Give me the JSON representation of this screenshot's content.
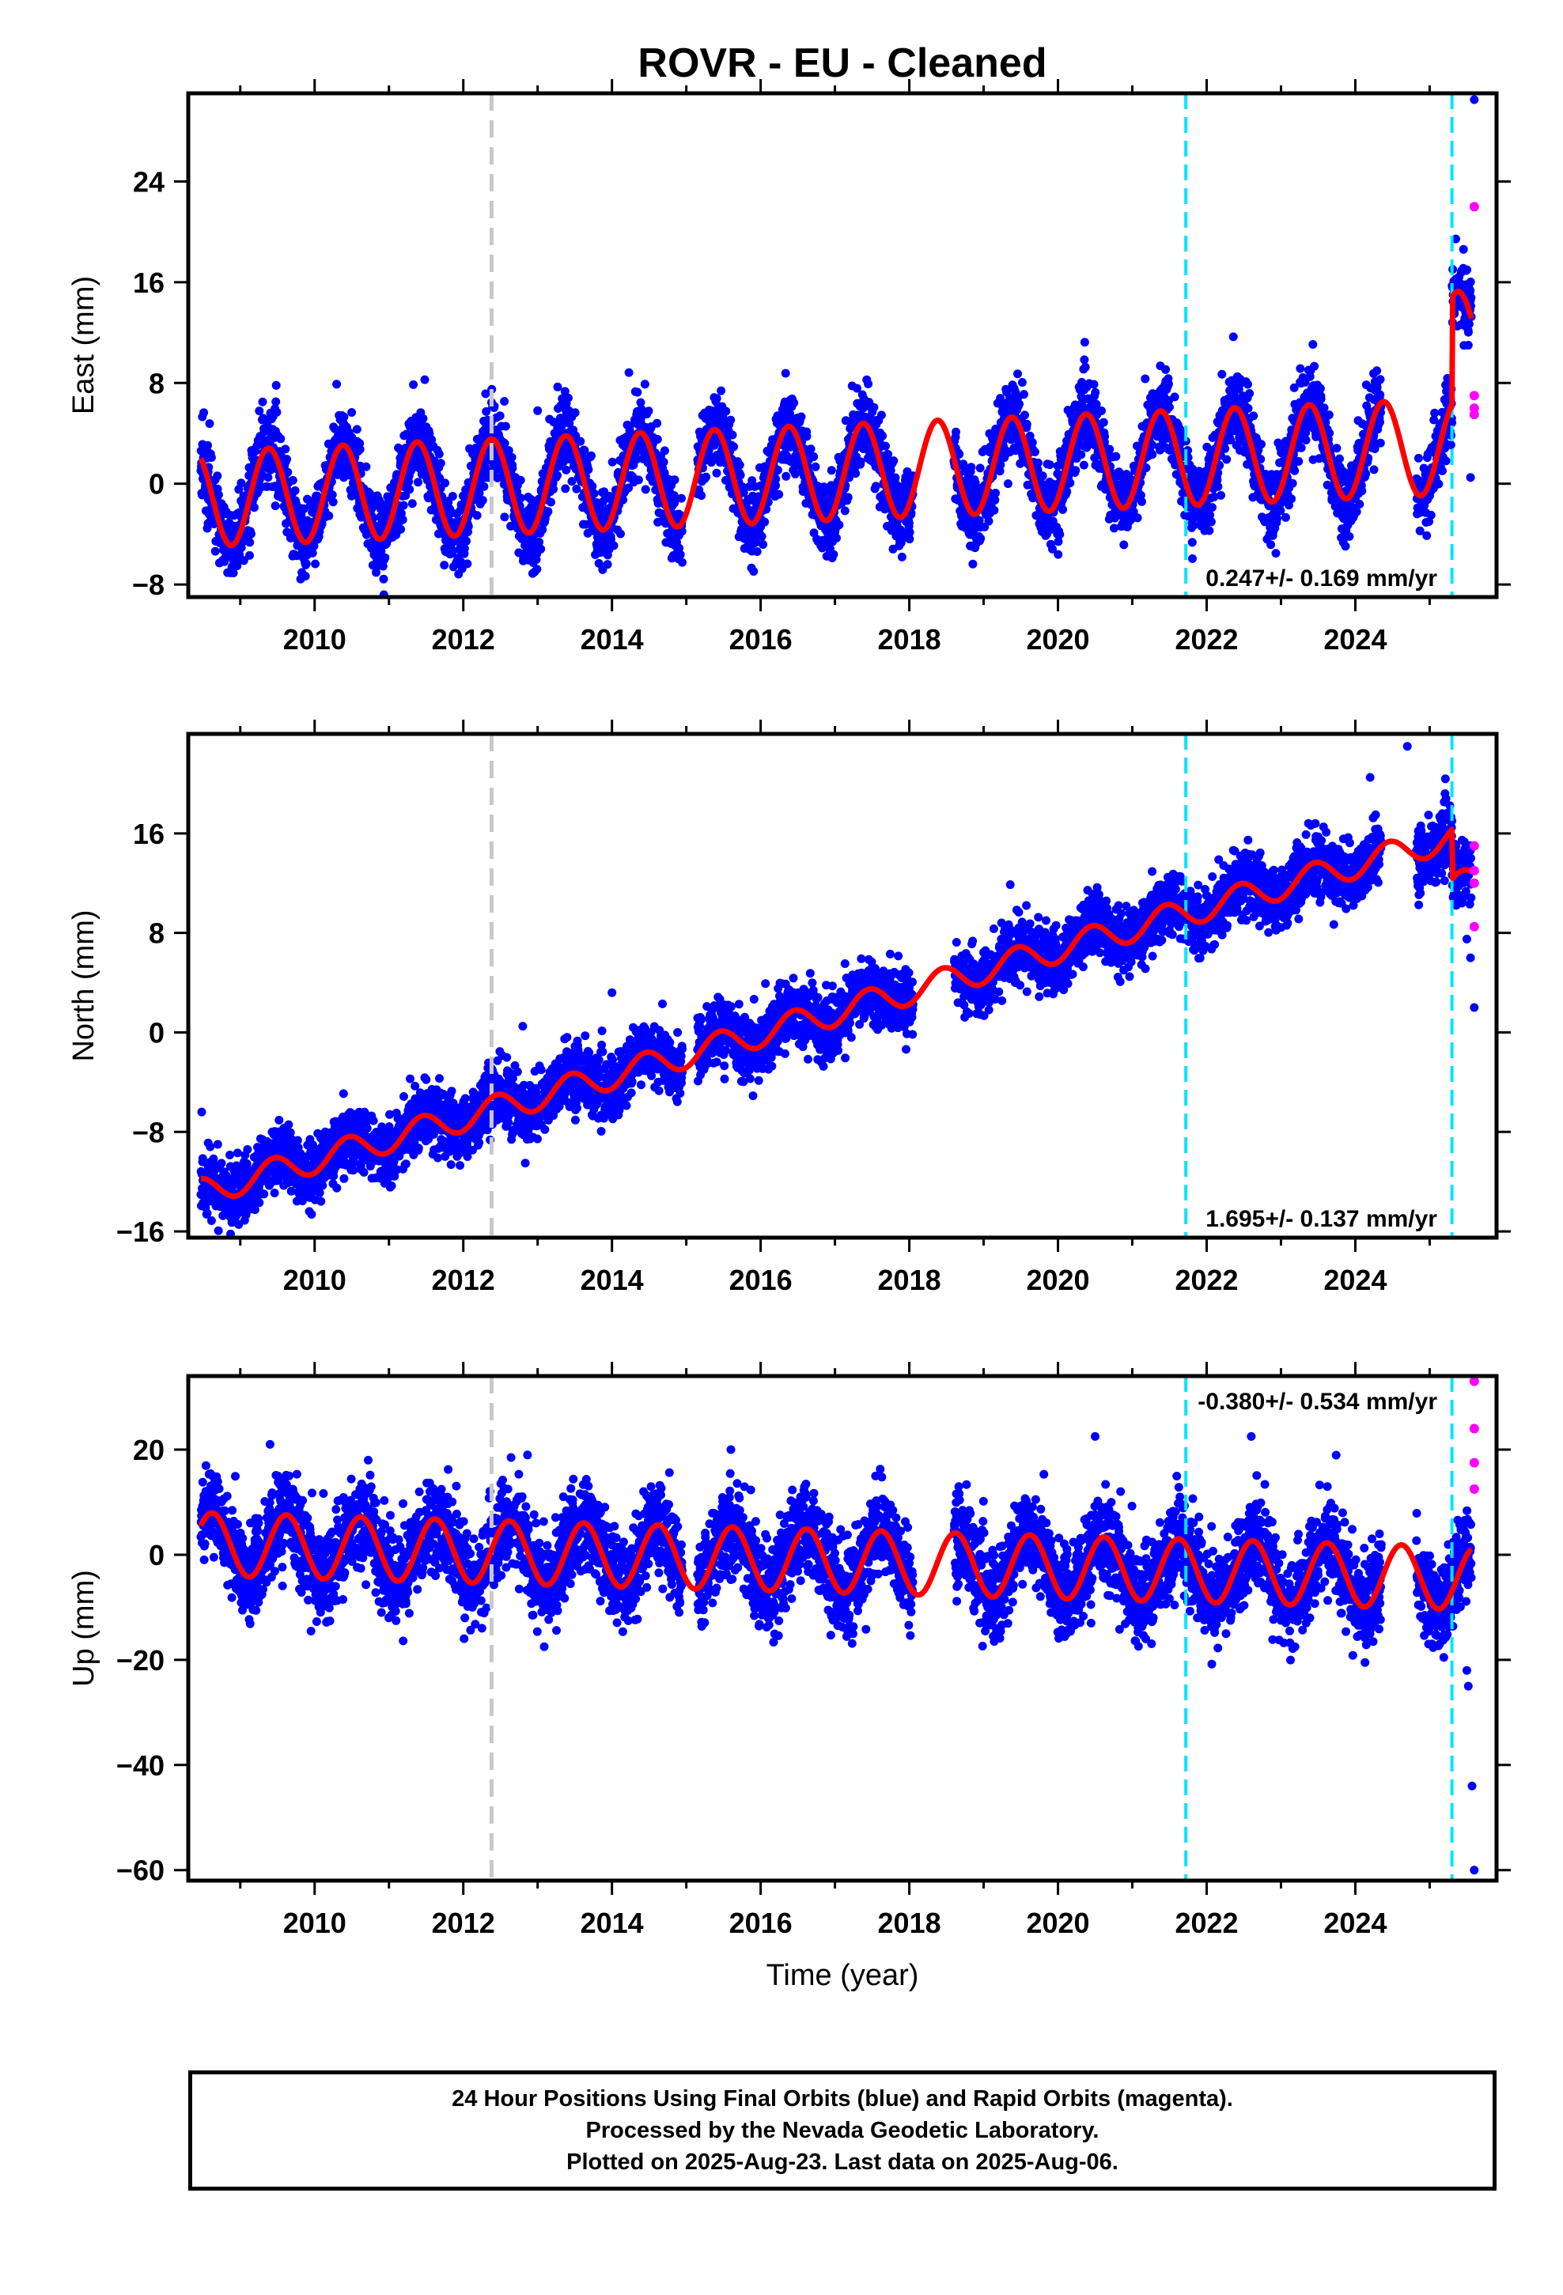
{
  "chart_data": {
    "type": "scatter",
    "title": "ROVR  - EU - Cleaned",
    "xlabel": "Time (year)",
    "xlim": [
      2008.3,
      2025.9
    ],
    "xticks": [
      2010,
      2012,
      2014,
      2016,
      2018,
      2020,
      2022,
      2024
    ],
    "colors": {
      "final": "#0000ff",
      "rapid": "#ff00ff",
      "model": "#ff0000",
      "equipment_change": "#c8c8c8",
      "earthquake": "#00e5ff"
    },
    "vertical_lines": [
      {
        "x": 2012.38,
        "kind": "equipment_change"
      },
      {
        "x": 2021.72,
        "kind": "earthquake"
      },
      {
        "x": 2025.3,
        "kind": "earthquake"
      }
    ],
    "gaps": [
      [
        2014.95,
        2015.15
      ],
      [
        2018.05,
        2018.6
      ],
      [
        2024.35,
        2024.82
      ]
    ],
    "panels": [
      {
        "id": "east",
        "ylabel": "East (mm)",
        "ylim": [
          -9,
          31
        ],
        "yticks": [
          -8,
          0,
          8,
          16,
          24
        ],
        "rate": "0.247+/- 0.169 mm/yr",
        "rate_position": "bottom-right",
        "slope": 0.247,
        "intercept": -1.2,
        "annual_amplitude": 3.8,
        "annual_phase_peak": 0.38,
        "noise_sd": 1.5,
        "offsets": [
          {
            "x": 2025.3,
            "value": 8.5
          }
        ],
        "final_last": [
          {
            "x": 2025.42,
            "y": 15.5
          },
          {
            "x": 2025.47,
            "y": 13.0
          },
          {
            "x": 2025.52,
            "y": 11.0
          },
          {
            "x": 2025.55,
            "y": 0.5
          }
        ],
        "rapid": [
          {
            "x": 2025.6,
            "y": 22.0
          },
          {
            "x": 2025.6,
            "y": 7.0
          },
          {
            "x": 2025.6,
            "y": 6.0
          },
          {
            "x": 2025.6,
            "y": 5.5
          }
        ],
        "outliers": [
          {
            "x": 2025.6,
            "y": 30.5
          },
          {
            "x": 2009.3,
            "y": 6.5
          },
          {
            "x": 2013.0,
            "y": 5.8
          },
          {
            "x": 2019.3,
            "y": 7.5
          },
          {
            "x": 2023.4,
            "y": 9.0
          }
        ]
      },
      {
        "id": "north",
        "ylabel": "North (mm)",
        "ylim": [
          -16.5,
          24
        ],
        "yticks": [
          -16,
          -8,
          0,
          8,
          16
        ],
        "rate": "1.695+/- 0.137 mm/yr",
        "rate_position": "bottom-right",
        "slope": 1.695,
        "intercept": -12.8,
        "annual_amplitude": 1.1,
        "annual_phase_peak": 0.45,
        "noise_sd": 1.25,
        "offsets": [
          {
            "x": 2025.3,
            "value": -4.0
          }
        ],
        "final_last": [
          {
            "x": 2025.5,
            "y": 7.5
          },
          {
            "x": 2025.55,
            "y": 6.0
          },
          {
            "x": 2025.6,
            "y": 2.0
          }
        ],
        "rapid": [
          {
            "x": 2025.6,
            "y": 15.0
          },
          {
            "x": 2025.6,
            "y": 13.0
          },
          {
            "x": 2025.6,
            "y": 12.0
          },
          {
            "x": 2025.6,
            "y": 8.5
          }
        ],
        "outliers": [
          {
            "x": 2024.7,
            "y": 23.0
          },
          {
            "x": 2024.2,
            "y": 20.5
          },
          {
            "x": 2014.0,
            "y": 3.2
          },
          {
            "x": 2012.8,
            "y": 0.5
          }
        ]
      },
      {
        "id": "up",
        "ylabel": "Up (mm)",
        "ylim": [
          -62,
          34
        ],
        "yticks": [
          -60,
          -40,
          -20,
          0,
          20
        ],
        "rate": "-0.380+/- 0.534 mm/yr",
        "rate_position": "top-right",
        "slope": -0.38,
        "intercept": 2.0,
        "annual_amplitude": 6.0,
        "annual_phase_peak": 0.62,
        "noise_sd": 4.3,
        "offsets": [],
        "final_last": [
          {
            "x": 2025.5,
            "y": -22.0
          },
          {
            "x": 2025.52,
            "y": -25.0
          },
          {
            "x": 2025.57,
            "y": -44.0
          },
          {
            "x": 2025.6,
            "y": -60.0
          }
        ],
        "rapid": [
          {
            "x": 2025.6,
            "y": 33.0
          },
          {
            "x": 2025.6,
            "y": 24.0
          },
          {
            "x": 2025.6,
            "y": 17.5
          },
          {
            "x": 2025.6,
            "y": 12.5
          }
        ],
        "outliers": [
          {
            "x": 2009.4,
            "y": 21.0
          },
          {
            "x": 2020.5,
            "y": 22.5
          },
          {
            "x": 2022.6,
            "y": 22.5
          },
          {
            "x": 2015.6,
            "y": 20.0
          }
        ]
      }
    ]
  },
  "caption": {
    "line1": "24 Hour Positions Using Final Orbits (blue) and Rapid Orbits (magenta).",
    "line2": "Processed by the Nevada Geodetic Laboratory.",
    "line3": "Plotted on 2025-Aug-23. Last data on 2025-Aug-06."
  }
}
